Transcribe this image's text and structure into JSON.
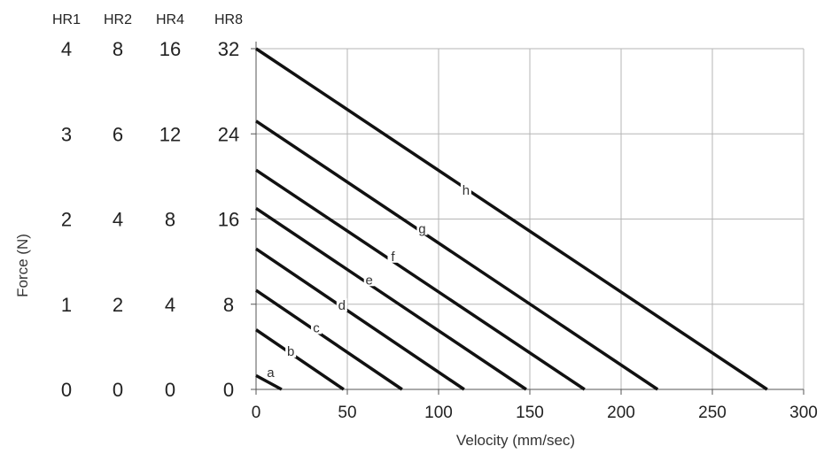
{
  "chart_data": {
    "type": "line",
    "xlabel": "Velocity (mm/sec)",
    "ylabel": "Force (N)",
    "xlim": [
      0,
      300
    ],
    "x_ticks": [
      0,
      50,
      100,
      150,
      200,
      250,
      300
    ],
    "grid": true,
    "y_axes": [
      {
        "name": "HR1",
        "ticks": [
          0,
          1,
          2,
          3,
          4
        ]
      },
      {
        "name": "HR2",
        "ticks": [
          0,
          2,
          4,
          6,
          8
        ]
      },
      {
        "name": "HR4",
        "ticks": [
          0,
          4,
          8,
          12,
          16
        ]
      },
      {
        "name": "HR8",
        "ticks": [
          0,
          8,
          16,
          24,
          32
        ]
      }
    ],
    "ylim": [
      0,
      32
    ],
    "y_scale_axis": "HR8",
    "series": [
      {
        "name": "a",
        "x": [
          0,
          14
        ],
        "y": [
          1.3,
          0
        ],
        "label_at": [
          8,
          1.5
        ]
      },
      {
        "name": "b",
        "x": [
          0,
          48
        ],
        "y": [
          5.6,
          0
        ],
        "label_at": [
          19,
          3.5
        ]
      },
      {
        "name": "c",
        "x": [
          0,
          80
        ],
        "y": [
          9.3,
          0
        ],
        "label_at": [
          33,
          5.7
        ]
      },
      {
        "name": "d",
        "x": [
          0,
          114
        ],
        "y": [
          13.2,
          0
        ],
        "label_at": [
          47,
          7.8
        ]
      },
      {
        "name": "e",
        "x": [
          0,
          148
        ],
        "y": [
          17.0,
          0
        ],
        "label_at": [
          62,
          10.2
        ]
      },
      {
        "name": "f",
        "x": [
          0,
          180
        ],
        "y": [
          20.6,
          0
        ],
        "label_at": [
          75,
          12.4
        ]
      },
      {
        "name": "g",
        "x": [
          0,
          220
        ],
        "y": [
          25.2,
          0
        ],
        "label_at": [
          91,
          15.0
        ]
      },
      {
        "name": "h",
        "x": [
          0,
          280
        ],
        "y": [
          32.0,
          0
        ],
        "label_at": [
          115,
          18.6
        ]
      }
    ]
  }
}
